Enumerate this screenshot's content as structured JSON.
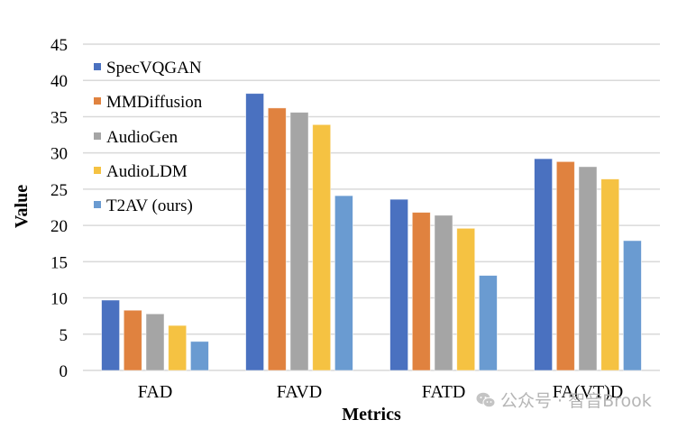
{
  "chart_data": {
    "type": "bar",
    "title": "",
    "xlabel": "Metrics",
    "ylabel": "Value",
    "ylim": [
      0,
      45
    ],
    "yticks": [
      0,
      5,
      10,
      15,
      20,
      25,
      30,
      35,
      40,
      45
    ],
    "grid": true,
    "legend_position": "top-left",
    "categories": [
      "FAD",
      "FAVD",
      "FATD",
      "FA(VT)D"
    ],
    "series": [
      {
        "name": "SpecVQGAN",
        "color": "#4A71C0",
        "values": [
          9.7,
          38.2,
          23.6,
          29.2
        ]
      },
      {
        "name": "MMDiffusion",
        "color": "#E0823F",
        "values": [
          8.3,
          36.2,
          21.8,
          28.8
        ]
      },
      {
        "name": "AudioGen",
        "color": "#A5A5A5",
        "values": [
          7.8,
          35.6,
          21.4,
          28.1
        ]
      },
      {
        "name": "AudioLDM",
        "color": "#F5C242",
        "values": [
          6.2,
          33.9,
          19.6,
          26.4
        ]
      },
      {
        "name": "T2AV (ours)",
        "color": "#6A9BD1",
        "values": [
          4.0,
          24.1,
          13.1,
          17.9
        ]
      }
    ]
  },
  "watermark": {
    "icon": "wechat-icon",
    "text": "公众号 · 智音Brook"
  }
}
